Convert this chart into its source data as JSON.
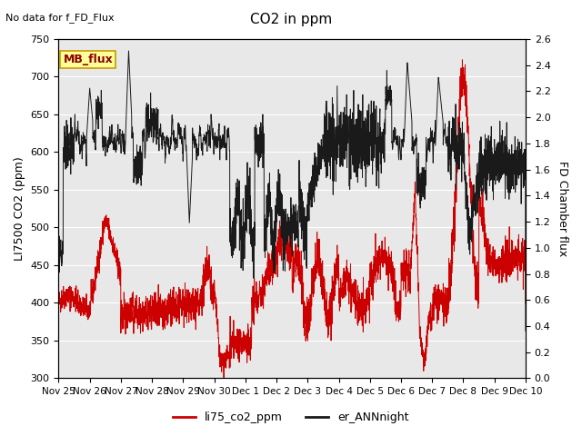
{
  "title": "CO2 in ppm",
  "top_left_text": "No data for f_FD_Flux",
  "ylabel_left": "LI7500 CO2 (ppm)",
  "ylabel_right": "FD Chamber flux",
  "ylim_left": [
    300,
    750
  ],
  "ylim_right": [
    0.0,
    2.6
  ],
  "yticks_left": [
    300,
    350,
    400,
    450,
    500,
    550,
    600,
    650,
    700,
    750
  ],
  "yticks_right": [
    0.0,
    0.2,
    0.4,
    0.6,
    0.8,
    1.0,
    1.2,
    1.4,
    1.6,
    1.8,
    2.0,
    2.2,
    2.4,
    2.6
  ],
  "xtick_labels": [
    "Nov 25",
    "Nov 26",
    "Nov 27",
    "Nov 28",
    "Nov 29",
    "Nov 30",
    "Dec 1",
    "Dec 2",
    "Dec 3",
    "Dec 4",
    "Dec 5",
    "Dec 6",
    "Dec 7",
    "Dec 8",
    "Dec 9",
    "Dec 10"
  ],
  "legend_label_red": "li75_co2_ppm",
  "legend_label_black": "er_ANNnight",
  "mb_flux_label": "MB_flux",
  "color_red": "#CC0000",
  "color_black": "#1a1a1a",
  "background_color": "#ffffff",
  "plot_bg_color": "#e8e8e8",
  "grid_color": "#ffffff",
  "mb_flux_box_color": "#ffff99",
  "mb_flux_box_edge": "#cc9900",
  "figsize": [
    6.4,
    4.8
  ],
  "dpi": 100
}
